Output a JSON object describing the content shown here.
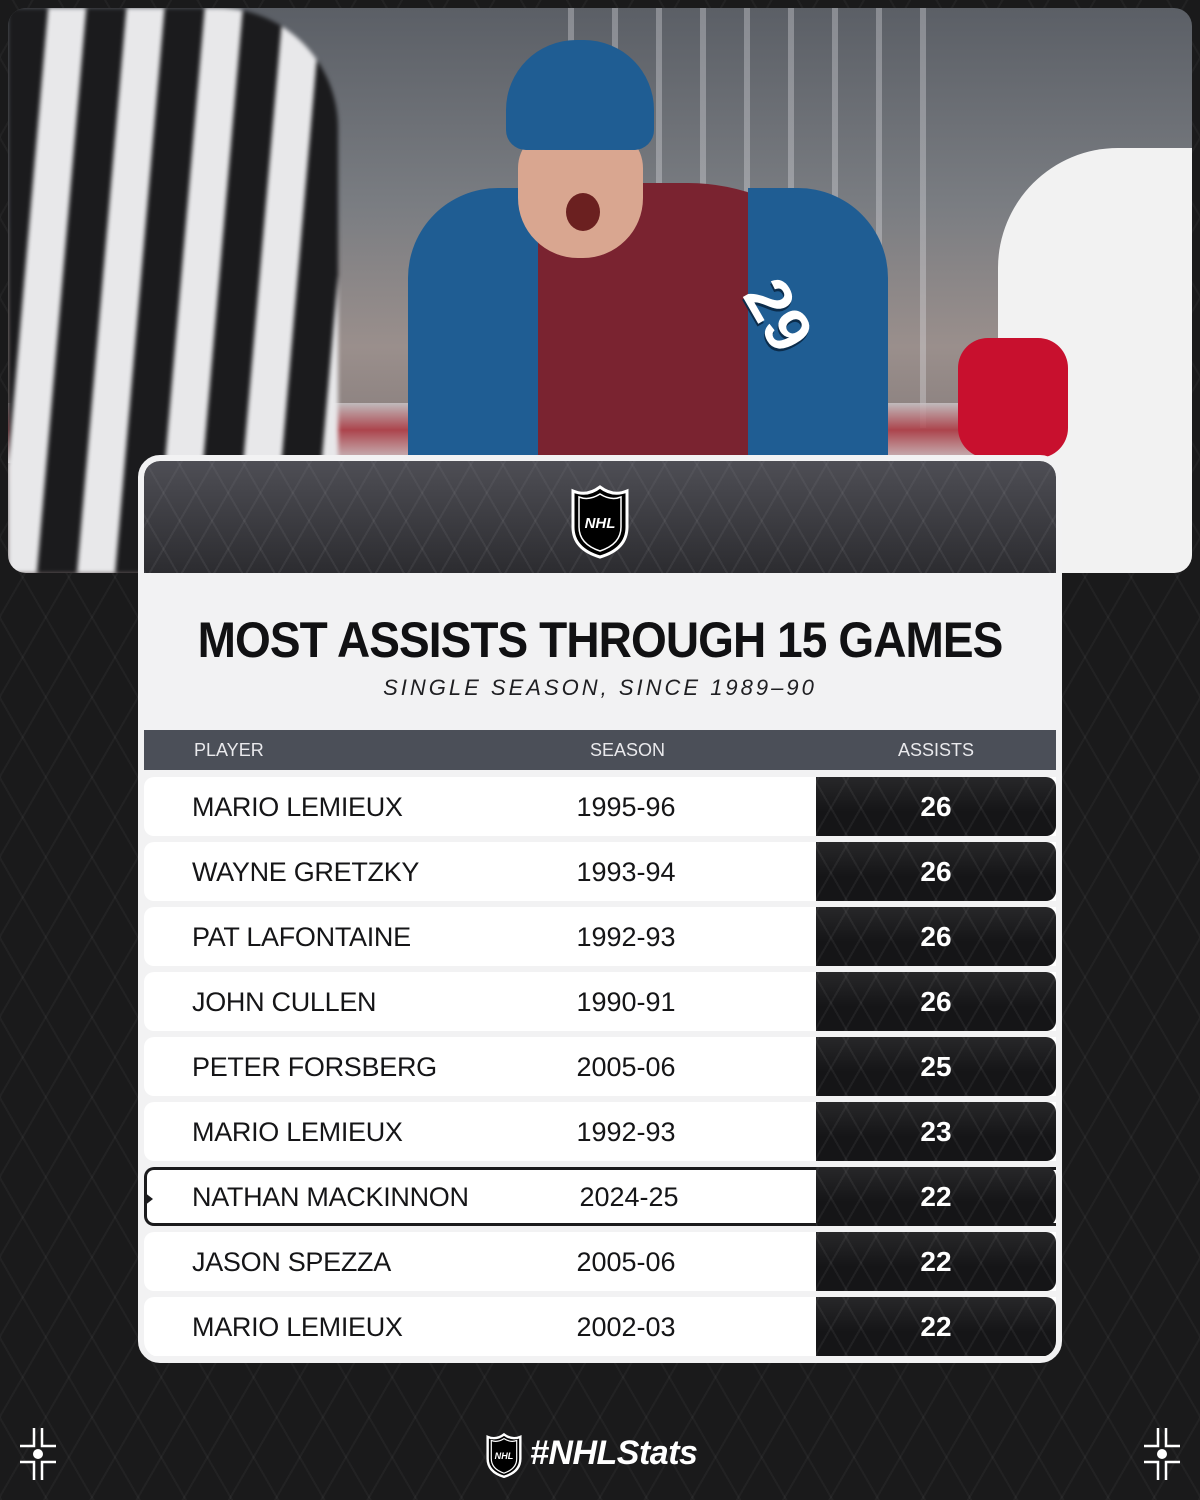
{
  "hero": {
    "jersey_number": "29"
  },
  "card": {
    "title": "MOST ASSISTS THROUGH 15 GAMES",
    "subtitle": "SINGLE SEASON, SINCE 1989–90",
    "logo_text": "NHL",
    "columns": {
      "player": "PLAYER",
      "season": "SEASON",
      "assists": "ASSISTS"
    },
    "rows": [
      {
        "player": "MARIO LEMIEUX",
        "season": "1995-96",
        "assists": "26"
      },
      {
        "player": "WAYNE GRETZKY",
        "season": "1993-94",
        "assists": "26"
      },
      {
        "player": "PAT LAFONTAINE",
        "season": "1992-93",
        "assists": "26"
      },
      {
        "player": "JOHN CULLEN",
        "season": "1990-91",
        "assists": "26"
      },
      {
        "player": "PETER FORSBERG",
        "season": "2005-06",
        "assists": "25"
      },
      {
        "player": "MARIO LEMIEUX",
        "season": "1992-93",
        "assists": "23"
      },
      {
        "player": "NATHAN MACKINNON",
        "season": "2024-25",
        "assists": "22",
        "highlighted": true
      },
      {
        "player": "JASON SPEZZA",
        "season": "2005-06",
        "assists": "22"
      },
      {
        "player": "MARIO LEMIEUX",
        "season": "2002-03",
        "assists": "22"
      }
    ]
  },
  "footer": {
    "hashtag": "#NHLStats"
  },
  "colors": {
    "background": "#1a1a1b",
    "card": "#f2f2f3",
    "header_bar": "#4b4f58",
    "assist_cell": "#151517"
  },
  "icons": {
    "league_logo": "nhl-shield-icon",
    "corner_ornament": "crosshair-ornament-icon"
  }
}
